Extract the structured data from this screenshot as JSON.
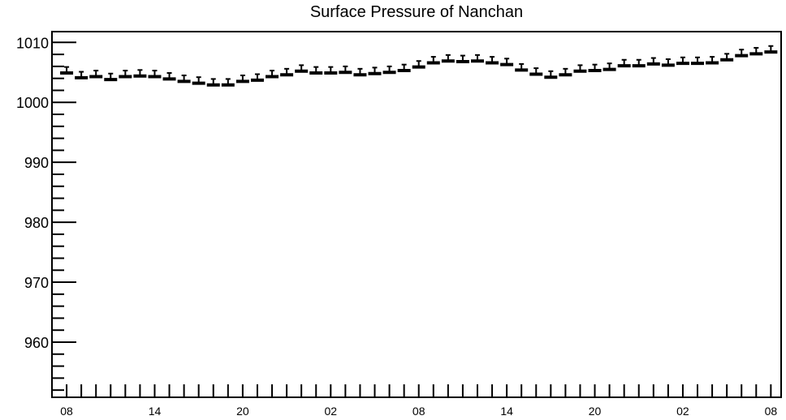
{
  "chart_data": {
    "type": "line",
    "title": "Surface Pressure of Nanchan",
    "xlabel": "",
    "ylabel": "",
    "ylim": [
      950.8,
      1011.8
    ],
    "y_ticks": [
      "960",
      "970",
      "980",
      "990",
      "1000",
      "1010"
    ],
    "x_tick_labels": [
      "08",
      "14",
      "20",
      "02",
      "08",
      "14",
      "20",
      "02",
      "08"
    ],
    "x_range": [
      -1,
      48.7
    ],
    "y_error": 1.0,
    "marker_style": "error-bars",
    "grid": false,
    "series": [
      {
        "values": [
          1004.9,
          1004.1,
          1004.3,
          1003.8,
          1004.3,
          1004.4,
          1004.3,
          1003.9,
          1003.5,
          1003.2,
          1002.9,
          1002.9,
          1003.5,
          1003.7,
          1004.3,
          1004.6,
          1005.2,
          1004.9,
          1004.9,
          1005.0,
          1004.6,
          1004.8,
          1005.0,
          1005.3,
          1005.9,
          1006.6,
          1006.9,
          1006.8,
          1006.9,
          1006.6,
          1006.3,
          1005.4,
          1004.7,
          1004.2,
          1004.6,
          1005.2,
          1005.3,
          1005.5,
          1006.1,
          1006.1,
          1006.4,
          1006.2,
          1006.5,
          1006.5,
          1006.6,
          1007.1,
          1007.8,
          1008.1,
          1008.4
        ]
      }
    ]
  }
}
